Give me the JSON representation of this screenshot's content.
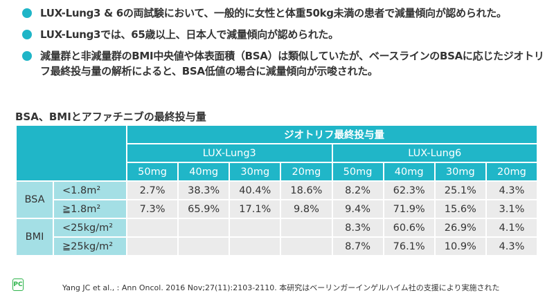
{
  "bullets": [
    "LUX-Lung3 & 6の両試験において、一般的に女性と体重50kg未満の患者で減量傾向が認められた。",
    "LUX-Lung3では、65歳以上、日本人で減量傾向が認められた。",
    "減量群と非減量群のBMI中央値や体表面積（BSA）は類似していたが、ベースラインのBSAに応じたジオトリフ最終投与量の解析によると、BSA低値の場合に減量傾向が示唆された。"
  ],
  "caption": "BSA、BMIとアファチニブの最終投与量",
  "table": {
    "top_header": "ジオトリフ最終投与量",
    "trials": [
      "LUX-Lung3",
      "LUX-Lung6"
    ],
    "doses": [
      "50mg",
      "40mg",
      "30mg",
      "20mg",
      "50mg",
      "40mg",
      "30mg",
      "20mg"
    ],
    "groups": [
      {
        "label": "BSA",
        "rows": [
          {
            "label": "<1.8m²",
            "values": [
              "2.7%",
              "38.3%",
              "40.4%",
              "18.6%",
              "8.2%",
              "62.3%",
              "25.1%",
              "4.3%"
            ]
          },
          {
            "label": "≧1.8m²",
            "values": [
              "7.3%",
              "65.9%",
              "17.1%",
              "9.8%",
              "9.4%",
              "71.9%",
              "15.6%",
              "3.1%"
            ]
          }
        ]
      },
      {
        "label": "BMI",
        "rows": [
          {
            "label": "<25kg/m²",
            "values": [
              "",
              "",
              "",
              "",
              "8.3%",
              "60.6%",
              "26.9%",
              "4.1%"
            ]
          },
          {
            "label": "≧25kg/m²",
            "values": [
              "",
              "",
              "",
              "",
              "8.7%",
              "76.1%",
              "10.9%",
              "4.3%"
            ]
          }
        ]
      }
    ]
  },
  "footer": {
    "logo": "PC",
    "citation": "Yang JC et al., : Ann Oncol. 2016 Nov;27(11):2103-2110. 本研究はベーリンガーインゲルハイム社の支援により実施された"
  },
  "colors": {
    "header": "#20b6c8",
    "row_header": "#a4dfe5",
    "cell": "#ebebeb",
    "bullet": "#1fb5c7"
  }
}
